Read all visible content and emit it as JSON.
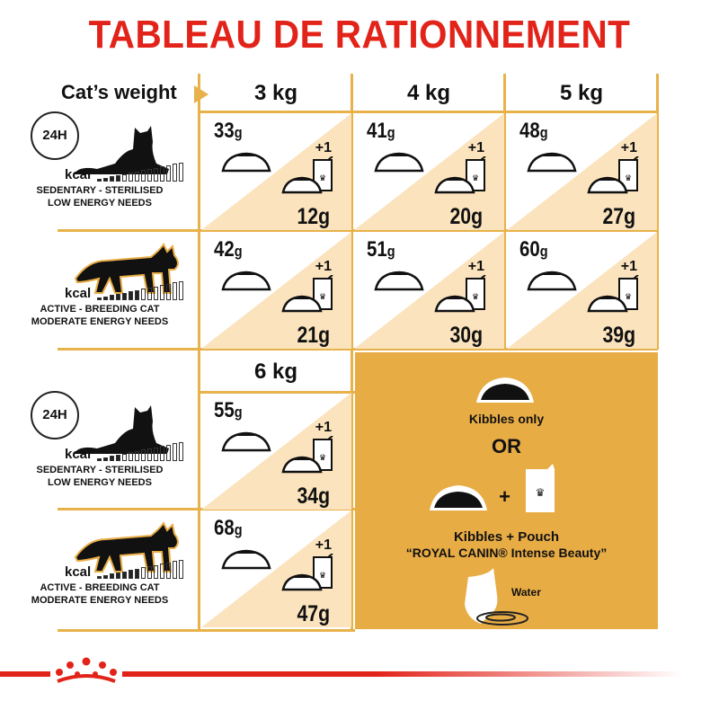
{
  "title": "TABLEAU DE RATIONNEMENT",
  "cats_weight_label": "Cat’s weight",
  "clock_label": "24H",
  "kcal_label": "kcal",
  "profiles": {
    "sedentary": {
      "line1": "SEDENTARY - STERILISED",
      "line2": "LOW ENERGY NEEDS"
    },
    "active": {
      "line1": "ACTIVE - BREEDING CAT",
      "line2": "MODERATE ENERGY NEEDS"
    }
  },
  "plus_one": "+1",
  "unit": "g",
  "weights": [
    "3 kg",
    "4 kg",
    "5 kg",
    "6 kg"
  ],
  "table": [
    {
      "weight": "3 kg",
      "sedentary": {
        "kibbles_only": "33",
        "with_pouch": "12g"
      },
      "active": {
        "kibbles_only": "42",
        "with_pouch": "21g"
      }
    },
    {
      "weight": "4 kg",
      "sedentary": {
        "kibbles_only": "41",
        "with_pouch": "20g"
      },
      "active": {
        "kibbles_only": "51",
        "with_pouch": "30g"
      }
    },
    {
      "weight": "5 kg",
      "sedentary": {
        "kibbles_only": "48",
        "with_pouch": "27g"
      },
      "active": {
        "kibbles_only": "60",
        "with_pouch": "39g"
      }
    },
    {
      "weight": "6 kg",
      "sedentary": {
        "kibbles_only": "55",
        "with_pouch": "34g"
      },
      "active": {
        "kibbles_only": "68",
        "with_pouch": "47g"
      }
    }
  ],
  "legend": {
    "kibbles_only": "Kibbles only",
    "or": "OR",
    "plus": "+",
    "kibbles_pouch": "Kibbles + Pouch",
    "product": "“ROYAL CANIN® Intense Beauty”",
    "water": "Water"
  },
  "colors": {
    "title": "#e2231a",
    "grid": "#e8b24a",
    "legend_bg": "#e8ac45",
    "triangle": "#fbe3bd"
  }
}
